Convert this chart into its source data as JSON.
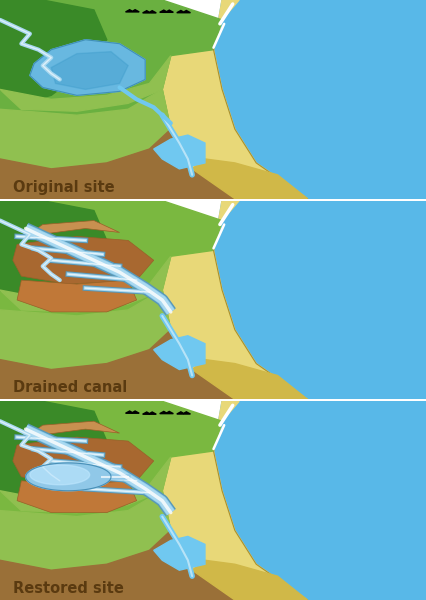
{
  "colors": {
    "sky": "#ffffff",
    "green_dark": "#3a8a28",
    "green_mid": "#6ab040",
    "green_light": "#90c050",
    "green_yellow": "#a8c855",
    "blue_ocean": "#58b8e8",
    "blue_ocean_deep": "#3898c8",
    "blue_water": "#70c8f0",
    "blue_lake": "#68b8e0",
    "blue_canal": "#a8d8f0",
    "blue_canal_white": "#d8f0ff",
    "sand_light": "#e8d878",
    "sand_mid": "#d0b848",
    "sand_dark": "#c0a838",
    "brown_soil": "#9a7038",
    "brown_soil2": "#b88840",
    "brown_field": "#a86830",
    "brown_field2": "#c07838",
    "brown_field3": "#986028",
    "outline_dark": "#5a4020",
    "label_color": "#5a3a10",
    "black": "#000000"
  },
  "panel_labels": [
    "Original site",
    "Drained canal",
    "Restored site"
  ],
  "fig_width": 4.27,
  "fig_height": 6.0
}
